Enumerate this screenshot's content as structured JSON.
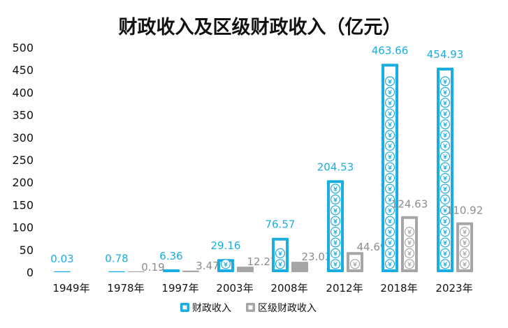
{
  "chart_data": {
    "type": "bar",
    "title": "财政收入及区级财政收入（亿元）",
    "categories": [
      "1949年",
      "1978年",
      "1997年",
      "2003年",
      "2008年",
      "2012年",
      "2018年",
      "2023年"
    ],
    "series": [
      {
        "name": "财政收入",
        "color": "#1AADE2",
        "values": [
          0.03,
          0.78,
          6.36,
          29.16,
          76.57,
          204.53,
          463.66,
          454.93
        ],
        "labels": [
          "0.03",
          "0.78",
          "6.36",
          "29.16",
          "76.57",
          "204.53",
          "463.66",
          "454.93"
        ]
      },
      {
        "name": "区级财政收入",
        "color": "#A6A6A6",
        "values": [
          null,
          0.19,
          3.47,
          12.27,
          23.03,
          44.69,
          124.63,
          110.92
        ],
        "labels": [
          "",
          "0.19",
          "3.47",
          "12.27",
          "23.03",
          "44.69",
          "124.63",
          "110.92"
        ]
      }
    ],
    "ylim": [
      0,
      500
    ],
    "yticks": [
      0,
      50,
      100,
      150,
      200,
      250,
      300,
      350,
      400,
      450,
      500
    ],
    "ytick_labels": [
      "0",
      "50",
      "100",
      "150",
      "200",
      "250",
      "300",
      "350",
      "400",
      "450",
      "500"
    ],
    "grid": false,
    "legend": "bottom",
    "bar_pattern_icon": "yen-coin-icon",
    "label_colors": {
      "main": "#1AADE2",
      "district": "#8C8C8C"
    }
  }
}
